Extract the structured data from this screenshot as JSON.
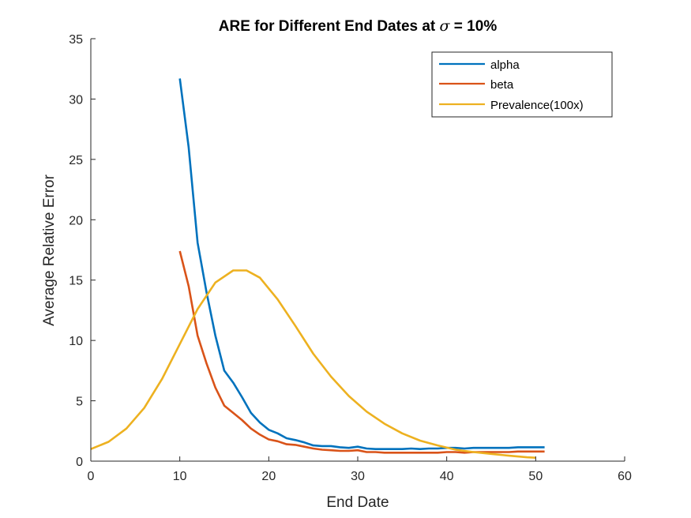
{
  "chart_data": {
    "type": "line",
    "title_prefix": "ARE for Different End Dates at ",
    "title_symbol": "σ",
    "title_suffix": " = 10%",
    "xlabel": "End Date",
    "ylabel": "Average Relative Error",
    "xlim": [
      0,
      60
    ],
    "ylim": [
      0,
      35
    ],
    "xticks": [
      "0",
      "10",
      "20",
      "30",
      "40",
      "50",
      "60"
    ],
    "yticks": [
      "0",
      "5",
      "10",
      "15",
      "20",
      "25",
      "30",
      "35"
    ],
    "grid": false,
    "legend_position": "top-right",
    "series": [
      {
        "name": "alpha",
        "color": "#0072BD",
        "x": [
          10,
          11,
          12,
          13,
          14,
          15,
          16,
          17,
          18,
          19,
          20,
          21,
          22,
          23,
          24,
          25,
          26,
          27,
          28,
          29,
          30,
          31,
          32,
          33,
          34,
          35,
          36,
          37,
          38,
          39,
          40,
          41,
          42,
          43,
          44,
          45,
          46,
          47,
          48,
          49,
          50,
          51
        ],
        "y": [
          31.7,
          26.0,
          18.1,
          14.0,
          10.4,
          7.5,
          6.5,
          5.3,
          4.0,
          3.2,
          2.6,
          2.3,
          1.9,
          1.75,
          1.55,
          1.3,
          1.25,
          1.25,
          1.15,
          1.1,
          1.2,
          1.05,
          1.0,
          1.0,
          1.0,
          1.0,
          1.05,
          1.0,
          1.05,
          1.05,
          1.1,
          1.1,
          1.05,
          1.1,
          1.1,
          1.1,
          1.1,
          1.1,
          1.15,
          1.15,
          1.15,
          1.15
        ]
      },
      {
        "name": "beta",
        "color": "#D95319",
        "x": [
          10,
          11,
          12,
          13,
          14,
          15,
          16,
          17,
          18,
          19,
          20,
          21,
          22,
          23,
          24,
          25,
          26,
          27,
          28,
          29,
          30,
          31,
          32,
          33,
          34,
          35,
          36,
          37,
          38,
          39,
          40,
          41,
          42,
          43,
          44,
          45,
          46,
          47,
          48,
          49,
          50,
          51
        ],
        "y": [
          17.4,
          14.5,
          10.4,
          8.1,
          6.1,
          4.6,
          4.0,
          3.4,
          2.7,
          2.2,
          1.8,
          1.65,
          1.4,
          1.35,
          1.2,
          1.05,
          0.95,
          0.9,
          0.85,
          0.85,
          0.9,
          0.75,
          0.75,
          0.7,
          0.7,
          0.7,
          0.7,
          0.7,
          0.7,
          0.7,
          0.75,
          0.75,
          0.7,
          0.75,
          0.75,
          0.75,
          0.75,
          0.75,
          0.8,
          0.8,
          0.8,
          0.8
        ]
      },
      {
        "name": "Prevalence(100x)",
        "color": "#EDB120",
        "x": [
          0,
          2,
          4,
          6,
          8,
          10,
          12,
          14,
          16,
          17.5,
          19,
          21,
          23,
          25,
          27,
          29,
          31,
          33,
          35,
          37,
          39,
          41,
          43,
          45,
          47,
          49,
          50
        ],
        "y": [
          1.0,
          1.6,
          2.7,
          4.4,
          6.8,
          9.7,
          12.6,
          14.8,
          15.8,
          15.8,
          15.2,
          13.4,
          11.2,
          8.9,
          7.0,
          5.4,
          4.1,
          3.1,
          2.3,
          1.7,
          1.3,
          0.95,
          0.75,
          0.6,
          0.45,
          0.32,
          0.28
        ]
      }
    ]
  }
}
